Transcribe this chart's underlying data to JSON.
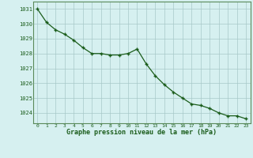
{
  "hours": [
    0,
    1,
    2,
    3,
    4,
    5,
    6,
    7,
    8,
    9,
    10,
    11,
    12,
    13,
    14,
    15,
    16,
    17,
    18,
    19,
    20,
    21,
    22,
    23
  ],
  "pressure": [
    1031.0,
    1030.1,
    1029.6,
    1029.3,
    1028.9,
    1028.4,
    1028.0,
    1028.0,
    1027.9,
    1027.9,
    1028.0,
    1028.3,
    1027.3,
    1026.5,
    1025.9,
    1025.4,
    1025.0,
    1024.6,
    1024.5,
    1024.3,
    1024.0,
    1023.8,
    1023.8,
    1023.6
  ],
  "line_color": "#1a5c1a",
  "marker": "+",
  "bg_color": "#d6f0f0",
  "grid_color": "#a8c8c8",
  "xlabel": "Graphe pression niveau de la mer (hPa)",
  "xlabel_color": "#1a5c1a",
  "tick_label_color": "#1a5c1a",
  "ylabel_ticks": [
    1024,
    1025,
    1026,
    1027,
    1028,
    1029,
    1030,
    1031
  ],
  "ylim": [
    1023.3,
    1031.5
  ],
  "xlim": [
    -0.5,
    23.5
  ],
  "spine_color": "#5a8a5a"
}
